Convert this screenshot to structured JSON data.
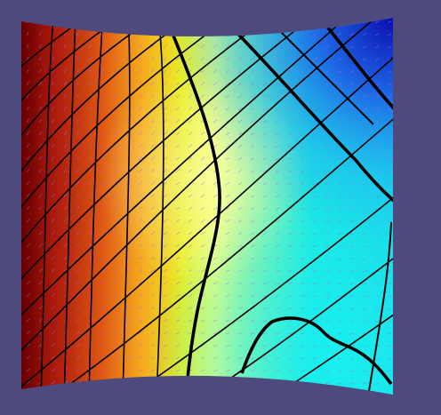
{
  "scene": {
    "background_color": "#4F4A7E",
    "colormap": [
      "#7A0000",
      "#B01E0E",
      "#E05A12",
      "#F5A81E",
      "#E9EE26",
      "#F2FF7A",
      "#E8FFA0",
      "#7BF3A0",
      "#1BE7E0",
      "#1FB6F2",
      "#1E62E6",
      "#0B0DB0"
    ],
    "line_color": "#000000",
    "arrow_color": "#A46BE0"
  }
}
